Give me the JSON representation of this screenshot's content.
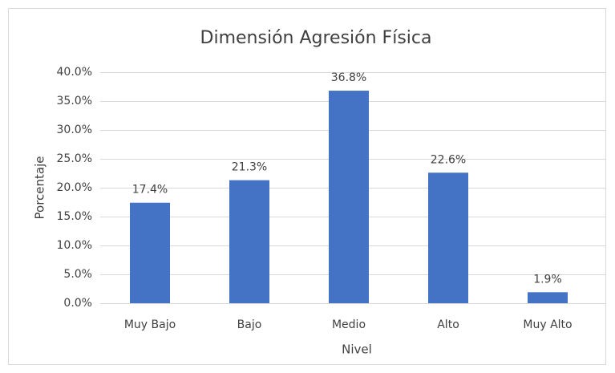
{
  "chart_data": {
    "type": "bar",
    "title": "Dimensión Agresión Física",
    "x_label": "Nivel",
    "y_label": "Porcentaje",
    "categories": [
      "Muy Bajo",
      "Bajo",
      "Medio",
      "Alto",
      "Muy Alto"
    ],
    "values": [
      17.4,
      21.3,
      36.8,
      22.6,
      1.9
    ],
    "value_labels": [
      "17.4%",
      "21.3%",
      "36.8%",
      "22.6%",
      "1.9%"
    ],
    "color": "#4472c4",
    "ylim": [
      0,
      40
    ],
    "yticks": [
      {
        "value": 0,
        "label": "0.0%"
      },
      {
        "value": 5,
        "label": "5.0%"
      },
      {
        "value": 10,
        "label": "10.0%"
      },
      {
        "value": 15,
        "label": "15.0%"
      },
      {
        "value": 20,
        "label": "20.0%"
      },
      {
        "value": 25,
        "label": "25.0%"
      },
      {
        "value": 30,
        "label": "30.0%"
      },
      {
        "value": 35,
        "label": "35.0%"
      },
      {
        "value": 40,
        "label": "40.0%"
      }
    ],
    "grid": true
  }
}
